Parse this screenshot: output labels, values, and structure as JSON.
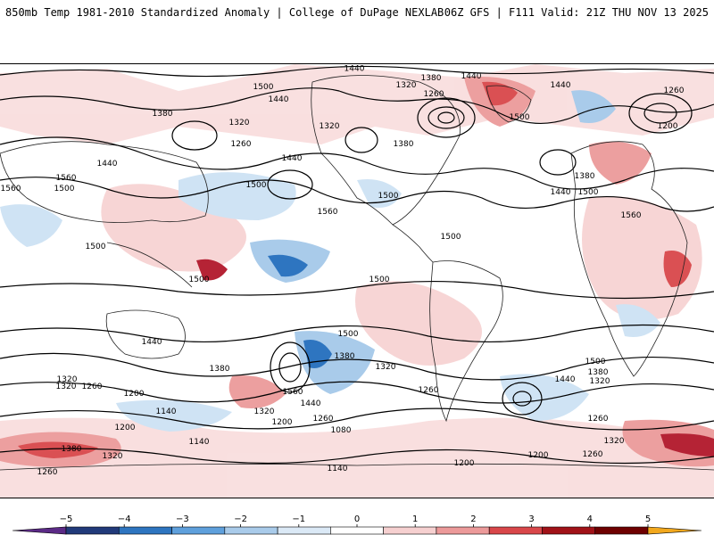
{
  "header": {
    "title_left": "850mb Temp 1981-2010 Standardized Anomaly | College of DuPage NEXLAB",
    "title_right": "06Z GFS | F111 Valid: 21Z THU NOV 13 2025"
  },
  "colors": {
    "contour": "#000000",
    "coast": "#222222",
    "strong_pos": "#b2182b",
    "pos": "#ef8a8a",
    "weak_pos": "#f7d3d3",
    "weak_neg": "#cfe3f4",
    "neg": "#6fa8dc",
    "strong_neg": "#1f6fc4"
  },
  "contour_labels": [
    "1440",
    "1500",
    "1440",
    "1380",
    "1320",
    "1260",
    "1440",
    "1440",
    "1260",
    "1200",
    "1380",
    "1320",
    "1320",
    "1260",
    "1380",
    "1440",
    "1500",
    "1380",
    "1500",
    "1440",
    "1500",
    "1560",
    "1560",
    "1500",
    "1440",
    "1500",
    "1560",
    "1500",
    "1500",
    "1500",
    "1500",
    "1560",
    "1440",
    "1380",
    "1320",
    "1500",
    "1320",
    "1260",
    "1380",
    "1320",
    "1260",
    "1560",
    "1440",
    "1440",
    "1500",
    "1380",
    "1320",
    "1200",
    "1140",
    "1320",
    "1200",
    "1260",
    "1260",
    "1080",
    "1140",
    "1200",
    "1200",
    "1380",
    "1320",
    "1260",
    "1140",
    "1200",
    "1320",
    "1260"
  ],
  "colorbar": {
    "ticks": [
      "−5",
      "−4",
      "−3",
      "−2",
      "−1",
      "0",
      "1",
      "2",
      "3",
      "4",
      "5"
    ],
    "segments": [
      "#5b2a86",
      "#213a7a",
      "#2e75c0",
      "#5fa0dc",
      "#a9cbea",
      "#dbe9f6",
      "#ffffff",
      "#f6d0d0",
      "#ec9a9a",
      "#d9474a",
      "#a11218",
      "#6e0000",
      "#f2a81d"
    ]
  }
}
